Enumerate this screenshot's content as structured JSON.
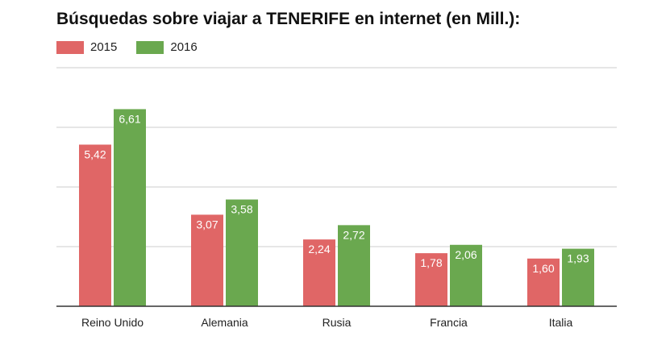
{
  "chart_data": {
    "type": "bar",
    "title": "Búsquedas sobre viajar a TENERIFE en internet (en Mill.):",
    "categories": [
      "Reino Unido",
      "Alemania",
      "Rusia",
      "Francia",
      "Italia"
    ],
    "series": [
      {
        "name": "2015",
        "color": "#e06666",
        "values": [
          5.42,
          3.07,
          2.24,
          1.78,
          1.6
        ],
        "labels": [
          "5,42",
          "3,07",
          "2,24",
          "1,78",
          "1,60"
        ]
      },
      {
        "name": "2016",
        "color": "#6aa84f",
        "values": [
          6.61,
          3.58,
          2.72,
          2.06,
          1.93
        ],
        "labels": [
          "6,61",
          "3,58",
          "2,72",
          "2,06",
          "1,93"
        ]
      }
    ],
    "xlabel": "",
    "ylabel": "",
    "ylim": [
      0,
      8
    ],
    "grid": true,
    "legend_position": "top-left"
  }
}
